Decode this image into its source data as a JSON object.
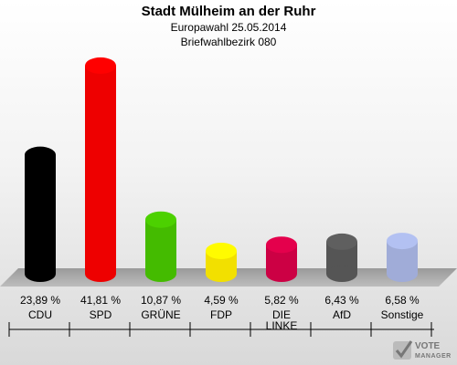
{
  "header": {
    "title": "Stadt Mülheim an der Ruhr",
    "subtitle": "Europawahl 25.05.2014",
    "district": "Briefwahlbezirk 080"
  },
  "chart_data": {
    "type": "bar",
    "categories": [
      "CDU",
      "SPD",
      "GRÜNE",
      "FDP",
      "DIE LINKE",
      "AfD",
      "Sonstige"
    ],
    "category_lines": [
      [
        "CDU"
      ],
      [
        "SPD"
      ],
      [
        "GRÜNE"
      ],
      [
        "FDP"
      ],
      [
        "DIE",
        "LINKE"
      ],
      [
        "AfD"
      ],
      [
        "Sonstige"
      ]
    ],
    "values": [
      23.89,
      41.81,
      10.87,
      4.59,
      5.82,
      6.43,
      6.58
    ],
    "value_labels": [
      "23,89 %",
      "41,81 %",
      "10,87 %",
      "4,59 %",
      "5,82 %",
      "6,43 %",
      "6,58 %"
    ],
    "colors": [
      "#000000",
      "#ee0000",
      "#44bb00",
      "#f2e000",
      "#cc0044",
      "#555555",
      "#a0acd8"
    ],
    "ylim": [
      0,
      45
    ],
    "grid": false,
    "legend": "none"
  },
  "logo": {
    "line1": "VOTE",
    "line2": "MANAGER"
  }
}
